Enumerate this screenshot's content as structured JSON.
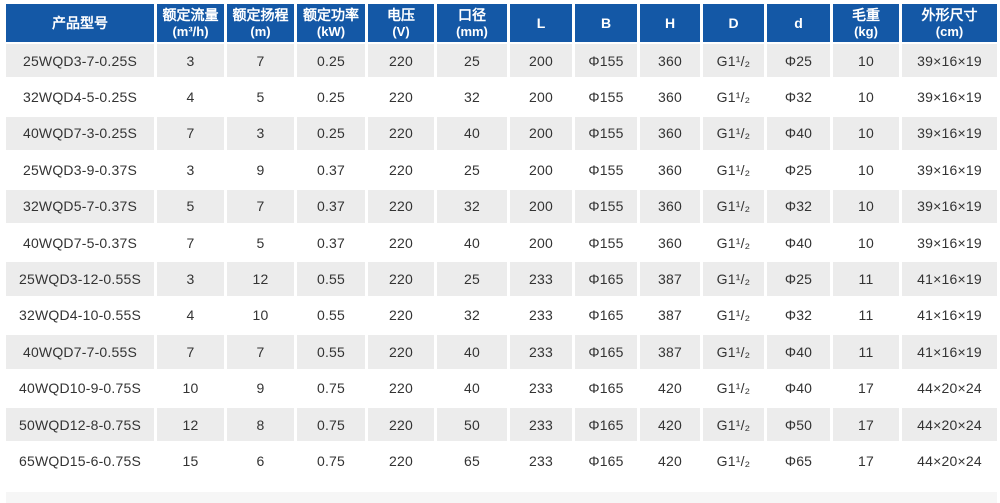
{
  "colors": {
    "header_bg": "#1458a6",
    "header_text": "#ffffff",
    "row_alt_bg": "#ececec",
    "row_bg": "#ffffff",
    "body_text": "#333333",
    "separator": "#ffffff",
    "bottom_strip_bg": "#f6f6f6"
  },
  "chart_data": {
    "type": "table",
    "title": "",
    "legend": "none",
    "grid": "white cell separators, alternating gray/white rows, blue header",
    "columns": [
      {
        "label": "产品型号",
        "unit": ""
      },
      {
        "label": "额定流量",
        "unit": "(m³/h)"
      },
      {
        "label": "额定扬程",
        "unit": "(m)"
      },
      {
        "label": "额定功率",
        "unit": "(kW)"
      },
      {
        "label": "电压",
        "unit": "(V)"
      },
      {
        "label": "口径",
        "unit": "(mm)"
      },
      {
        "label": "L",
        "unit": ""
      },
      {
        "label": "B",
        "unit": ""
      },
      {
        "label": "H",
        "unit": ""
      },
      {
        "label": "D",
        "unit": ""
      },
      {
        "label": "d",
        "unit": ""
      },
      {
        "label": "毛重",
        "unit": "(kg)"
      },
      {
        "label": "外形尺寸",
        "unit": "(cm)"
      }
    ],
    "rows": [
      [
        "25WQD3-7-0.25S",
        "3",
        "7",
        "0.25",
        "220",
        "25",
        "200",
        "Φ155",
        "360",
        "G1¹/₂",
        "Φ25",
        "10",
        "39×16×19"
      ],
      [
        "32WQD4-5-0.25S",
        "4",
        "5",
        "0.25",
        "220",
        "32",
        "200",
        "Φ155",
        "360",
        "G1¹/₂",
        "Φ32",
        "10",
        "39×16×19"
      ],
      [
        "40WQD7-3-0.25S",
        "7",
        "3",
        "0.25",
        "220",
        "40",
        "200",
        "Φ155",
        "360",
        "G1¹/₂",
        "Φ40",
        "10",
        "39×16×19"
      ],
      [
        "25WQD3-9-0.37S",
        "3",
        "9",
        "0.37",
        "220",
        "25",
        "200",
        "Φ155",
        "360",
        "G1¹/₂",
        "Φ25",
        "10",
        "39×16×19"
      ],
      [
        "32WQD5-7-0.37S",
        "5",
        "7",
        "0.37",
        "220",
        "32",
        "200",
        "Φ155",
        "360",
        "G1¹/₂",
        "Φ32",
        "10",
        "39×16×19"
      ],
      [
        "40WQD7-5-0.37S",
        "7",
        "5",
        "0.37",
        "220",
        "40",
        "200",
        "Φ155",
        "360",
        "G1¹/₂",
        "Φ40",
        "10",
        "39×16×19"
      ],
      [
        "25WQD3-12-0.55S",
        "3",
        "12",
        "0.55",
        "220",
        "25",
        "233",
        "Φ165",
        "387",
        "G1¹/₂",
        "Φ25",
        "11",
        "41×16×19"
      ],
      [
        "32WQD4-10-0.55S",
        "4",
        "10",
        "0.55",
        "220",
        "32",
        "233",
        "Φ165",
        "387",
        "G1¹/₂",
        "Φ32",
        "11",
        "41×16×19"
      ],
      [
        "40WQD7-7-0.55S",
        "7",
        "7",
        "0.55",
        "220",
        "40",
        "233",
        "Φ165",
        "387",
        "G1¹/₂",
        "Φ40",
        "11",
        "41×16×19"
      ],
      [
        "40WQD10-9-0.75S",
        "10",
        "9",
        "0.75",
        "220",
        "40",
        "233",
        "Φ165",
        "420",
        "G1¹/₂",
        "Φ40",
        "17",
        "44×20×24"
      ],
      [
        "50WQD12-8-0.75S",
        "12",
        "8",
        "0.75",
        "220",
        "50",
        "233",
        "Φ165",
        "420",
        "G1¹/₂",
        "Φ50",
        "17",
        "44×20×24"
      ],
      [
        "65WQD15-6-0.75S",
        "15",
        "6",
        "0.75",
        "220",
        "65",
        "233",
        "Φ165",
        "420",
        "G1¹/₂",
        "Φ65",
        "17",
        "44×20×24"
      ]
    ]
  }
}
